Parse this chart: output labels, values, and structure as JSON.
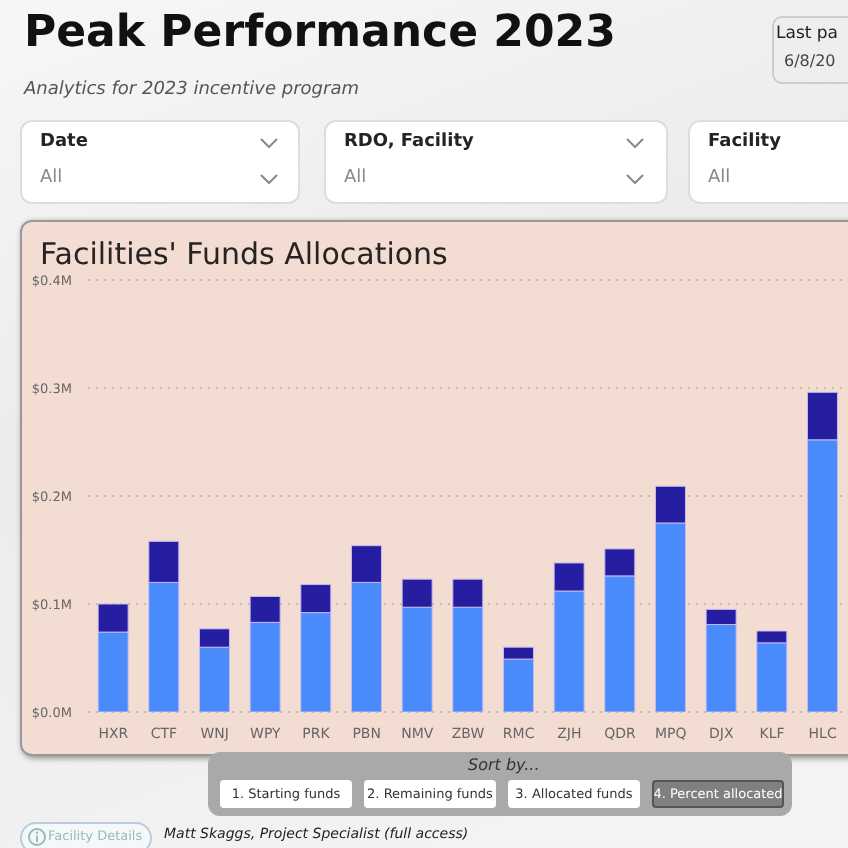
{
  "chart_data": {
    "type": "bar",
    "title": "Peak Performance 2023",
    "subtitle": "Analytics for 2023 incentive program",
    "annotations": [
      "Facilities' Funds Allocations",
      "Last pa",
      "6/8/20",
      "Date",
      "All",
      "RDO, Facility",
      "All",
      "Facility",
      "All",
      "Sort by...",
      "1. Starting funds",
      "2. Remaining funds",
      "3. Allocated funds",
      "4. Percent allocated",
      "Facility Details",
      "Matt Skaggs, Project Specialist (full access)"
    ],
    "categories": [
      "HXR",
      "CTF",
      "WNJ",
      "WPY",
      "PRK",
      "PBN",
      "NMV",
      "ZBW",
      "RMC",
      "ZJH",
      "QDR",
      "MPQ",
      "DJX",
      "KLF",
      "HLC"
    ],
    "stacked": true,
    "series": [
      {
        "color": "#4a8bfc",
        "values": [
          0.074,
          0.12,
          0.06,
          0.083,
          0.092,
          0.12,
          0.097,
          0.097,
          0.049,
          0.112,
          0.126,
          0.175,
          0.081,
          0.064,
          0.252
        ]
      },
      {
        "color": "#261ea0",
        "values": [
          0.026,
          0.038,
          0.017,
          0.024,
          0.026,
          0.034,
          0.026,
          0.026,
          0.011,
          0.026,
          0.025,
          0.034,
          0.014,
          0.011,
          0.044
        ]
      }
    ],
    "ylim": [
      0,
      0.4
    ],
    "yticks": [
      {
        "value": 0,
        "label": "$0.0M"
      },
      {
        "value": 0.1,
        "label": "$0.1M"
      },
      {
        "value": 0.2,
        "label": "$0.2M"
      },
      {
        "value": 0.3,
        "label": "$0.3M"
      },
      {
        "value": 0.4,
        "label": "$0.4M"
      }
    ],
    "grid": "y"
  }
}
